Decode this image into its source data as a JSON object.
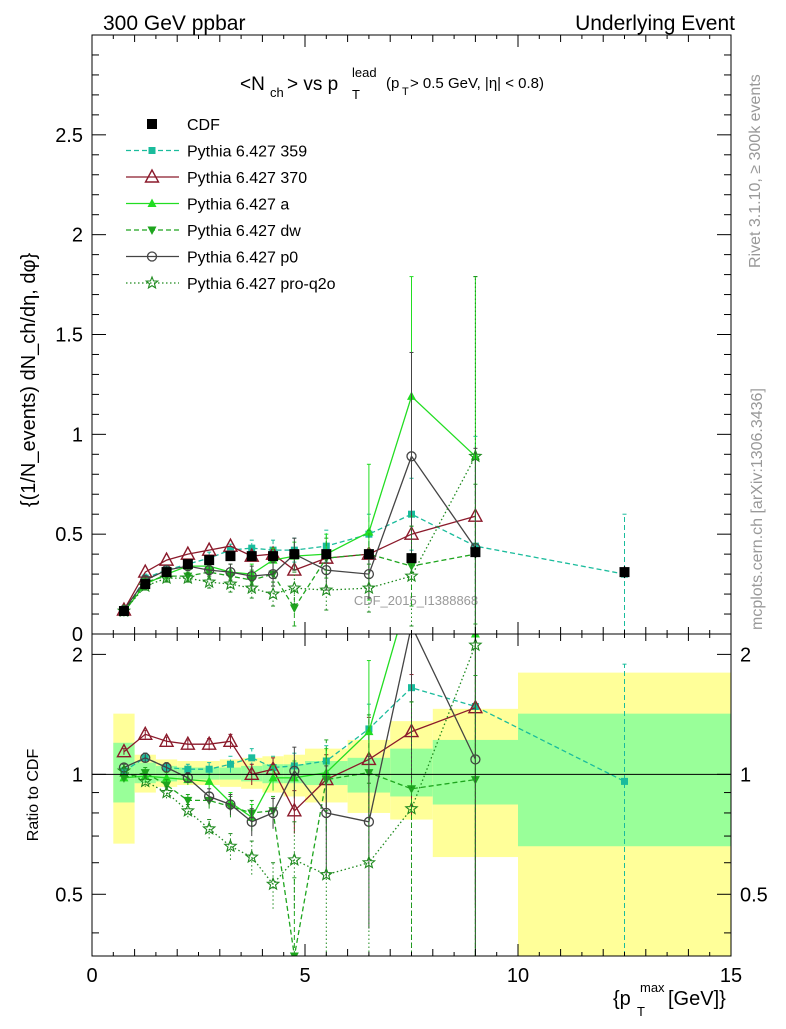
{
  "header": {
    "left": "300 GeV ppbar",
    "right": "Underlying Event"
  },
  "side": {
    "rivet": "Rivet 3.1.10, ≥ 300k events",
    "mcplots": "mcplots.cern.ch [arXiv:1306.3436]"
  },
  "watermark": "CDF_2015_I1388868",
  "colors": {
    "CDF": "#000000",
    "p359": "#1abc9c",
    "p370": "#8b1a2b",
    "pa": "#22dd22",
    "pdw": "#1ea51e",
    "pp0": "#444444",
    "pq2o": "#1e8a1e",
    "band_inner": "#99ff99",
    "band_outer": "#ffff99"
  },
  "chart_data": [
    {
      "type": "line",
      "panel": "main",
      "title": "<N_ch> vs p_T^lead (p_T > 0.5 GeV, |η| < 0.8)",
      "title_main": "<N",
      "title_sub1": "ch",
      "title_mid": "> vs p",
      "title_sup": "lead",
      "title_sub2": "T",
      "title_tail": "(p",
      "title_tail_sub": "T",
      "title_tail_end": " > 0.5 GeV, |η| < 0.8)",
      "ylabel": "{(1/N_events) dN_ch/dη, dφ}",
      "xlim": [
        0,
        15
      ],
      "ylim": [
        0,
        3
      ],
      "yticks": [
        "0.5",
        "1",
        "1.5",
        "2",
        "2.5"
      ],
      "ytick_values": [
        0.5,
        1,
        1.5,
        2,
        2.5
      ],
      "ytick_zero": "0",
      "legend": [
        "CDF",
        "Pythia 6.427 359",
        "Pythia 6.427 370",
        "Pythia 6.427 a",
        "Pythia 6.427 dw",
        "Pythia 6.427 p0",
        "Pythia 6.427 pro-q2o"
      ],
      "data": {
        "x": [
          0.75,
          1.25,
          1.75,
          2.25,
          2.75,
          3.25,
          3.75,
          4.25,
          4.75,
          5.5,
          6.5,
          7.5,
          9.0,
          12.5
        ],
        "CDF": [
          0.115,
          0.25,
          0.31,
          0.35,
          0.37,
          0.39,
          0.39,
          0.39,
          0.4,
          0.4,
          0.4,
          0.38,
          0.41,
          0.31
        ],
        "p359": [
          0.11,
          0.28,
          0.32,
          0.35,
          0.38,
          0.42,
          0.43,
          0.42,
          0.42,
          0.44,
          0.5,
          0.6,
          0.44,
          0.3
        ],
        "p370": [
          0.12,
          0.31,
          0.37,
          0.4,
          0.42,
          0.44,
          0.39,
          0.4,
          0.32,
          0.38,
          0.4,
          0.5,
          0.59
        ],
        "pa": [
          0.11,
          0.25,
          0.3,
          0.34,
          0.34,
          0.31,
          0.3,
          0.37,
          0.39,
          0.4,
          0.51,
          1.19,
          0.89
        ],
        "pdw": [
          0.11,
          0.26,
          0.29,
          0.29,
          0.31,
          0.29,
          0.27,
          0.3,
          0.13,
          0.38,
          0.4,
          0.34,
          0.4
        ],
        "pp0": [
          0.12,
          0.27,
          0.32,
          0.34,
          0.32,
          0.31,
          0.29,
          0.3,
          0.4,
          0.32,
          0.3,
          0.89,
          0.43
        ],
        "pq2o": [
          0.115,
          0.24,
          0.28,
          0.28,
          0.26,
          0.25,
          0.23,
          0.2,
          0.23,
          0.22,
          0.23,
          0.29,
          0.89
        ]
      },
      "errors": {
        "CDF": [
          0.01,
          0.01,
          0.01,
          0.01,
          0.01,
          0.01,
          0.01,
          0.01,
          0.015,
          0.015,
          0.02,
          0.02,
          0.03,
          0.03
        ],
        "p359": [
          0.01,
          0.02,
          0.02,
          0.02,
          0.03,
          0.03,
          0.04,
          0.05,
          0.06,
          0.08,
          0.1,
          0.18,
          0.55,
          0.3
        ],
        "pa": [
          0.01,
          0.02,
          0.02,
          0.02,
          0.03,
          0.04,
          0.05,
          0.06,
          0.07,
          0.1,
          0.34,
          0.6,
          0.9
        ],
        "pdw": [
          0.01,
          0.02,
          0.02,
          0.02,
          0.03,
          0.04,
          0.05,
          0.06,
          0.09,
          0.1,
          0.12,
          0.2,
          0.35
        ],
        "pp0": [
          0.01,
          0.02,
          0.02,
          0.02,
          0.03,
          0.04,
          0.05,
          0.06,
          0.08,
          0.1,
          0.12,
          0.52,
          0.5
        ],
        "pq2o": [
          0.01,
          0.02,
          0.02,
          0.02,
          0.03,
          0.04,
          0.05,
          0.06,
          0.08,
          0.1,
          0.12,
          0.25,
          0.9
        ]
      }
    },
    {
      "type": "line",
      "panel": "ratio",
      "ylabel": "Ratio to CDF",
      "xlabel": "{p_T^max [GeV]}",
      "xlabel_main": "{p",
      "xlabel_sup": "max",
      "xlabel_sub": "T",
      "xlabel_tail": " [GeV]}",
      "xlim": [
        0,
        15
      ],
      "ylim": [
        0.35,
        2.25
      ],
      "yticks": [
        "0.5",
        "1",
        "2"
      ],
      "ytick_values": [
        0.5,
        1,
        2
      ],
      "xticks": [
        "0",
        "5",
        "10",
        "15"
      ],
      "xtick_values": [
        0,
        5,
        10,
        15
      ],
      "bins": [
        [
          0.5,
          1.0
        ],
        [
          1.0,
          1.5
        ],
        [
          1.5,
          2.0
        ],
        [
          2.0,
          2.5
        ],
        [
          2.5,
          3.0
        ],
        [
          3.0,
          3.5
        ],
        [
          3.5,
          4.0
        ],
        [
          4.0,
          4.5
        ],
        [
          4.5,
          5.0
        ],
        [
          5.0,
          6.0
        ],
        [
          6.0,
          7.0
        ],
        [
          7.0,
          8.0
        ],
        [
          8.0,
          10.0
        ],
        [
          10.0,
          15.0
        ]
      ],
      "band_inner": [
        [
          0.85,
          1.2
        ],
        [
          0.95,
          1.07
        ],
        [
          0.96,
          1.05
        ],
        [
          0.97,
          1.04
        ],
        [
          0.97,
          1.04
        ],
        [
          0.97,
          1.04
        ],
        [
          0.96,
          1.05
        ],
        [
          0.95,
          1.06
        ],
        [
          0.95,
          1.06
        ],
        [
          0.94,
          1.08
        ],
        [
          0.9,
          1.1
        ],
        [
          0.88,
          1.16
        ],
        [
          0.84,
          1.22
        ],
        [
          0.66,
          1.42
        ]
      ],
      "band_outer": [
        [
          0.67,
          1.42
        ],
        [
          0.9,
          1.12
        ],
        [
          0.93,
          1.09
        ],
        [
          0.94,
          1.08
        ],
        [
          0.94,
          1.08
        ],
        [
          0.93,
          1.09
        ],
        [
          0.92,
          1.1
        ],
        [
          0.9,
          1.11
        ],
        [
          0.88,
          1.12
        ],
        [
          0.85,
          1.16
        ],
        [
          0.8,
          1.22
        ],
        [
          0.77,
          1.36
        ],
        [
          0.62,
          1.46
        ],
        [
          0.35,
          1.8
        ]
      ],
      "data": {
        "x": [
          0.75,
          1.25,
          1.75,
          2.25,
          2.75,
          3.25,
          3.75,
          4.25,
          4.75,
          5.5,
          6.5,
          7.5,
          9.0,
          12.5
        ],
        "p359": [
          1.02,
          1.1,
          1.04,
          1.03,
          1.03,
          1.06,
          1.1,
          1.04,
          1.05,
          1.08,
          1.3,
          1.65,
          1.48,
          0.96
        ],
        "p370": [
          1.14,
          1.26,
          1.21,
          1.19,
          1.19,
          1.21,
          1.0,
          1.03,
          0.81,
          0.97,
          1.09,
          1.28,
          1.47
        ],
        "pa": [
          0.98,
          0.99,
          0.98,
          0.97,
          0.96,
          0.85,
          0.78,
          0.98,
          0.98,
          1.01,
          1.28,
          3.0,
          2.25
        ],
        "pdw": [
          0.98,
          1.01,
          0.94,
          0.86,
          0.86,
          0.83,
          0.8,
          0.81,
          0.35,
          0.97,
          1.01,
          0.92,
          0.97
        ],
        "pp0": [
          1.04,
          1.1,
          1.04,
          0.98,
          0.88,
          0.84,
          0.76,
          0.8,
          1.02,
          0.8,
          0.76,
          2.36,
          1.09
        ],
        "pq2o": [
          1.02,
          0.96,
          0.9,
          0.81,
          0.73,
          0.66,
          0.62,
          0.53,
          0.61,
          0.56,
          0.6,
          0.82,
          2.11
        ]
      },
      "errors": {
        "p359": [
          0.02,
          0.03,
          0.03,
          0.03,
          0.04,
          0.05,
          0.06,
          0.07,
          0.08,
          0.1,
          0.2,
          0.6,
          1.0,
          0.93
        ],
        "p370": [
          0.02,
          0.03,
          0.03,
          0.03,
          0.04,
          0.05,
          0.06,
          0.07,
          0.1,
          0.15,
          0.3,
          0.5,
          1.0
        ],
        "pa": [
          0.02,
          0.03,
          0.03,
          0.03,
          0.04,
          0.05,
          0.06,
          0.07,
          0.1,
          0.15,
          0.65,
          1.6,
          2.0
        ],
        "pdw": [
          0.02,
          0.03,
          0.03,
          0.03,
          0.04,
          0.05,
          0.06,
          0.07,
          0.2,
          0.25,
          0.4,
          0.6,
          0.8
        ],
        "pp0": [
          0.02,
          0.03,
          0.03,
          0.03,
          0.04,
          0.05,
          0.06,
          0.07,
          0.15,
          0.25,
          0.35,
          1.4,
          1.2
        ],
        "pq2o": [
          0.02,
          0.03,
          0.03,
          0.03,
          0.04,
          0.05,
          0.06,
          0.07,
          0.15,
          0.25,
          0.35,
          0.7,
          2.0
        ]
      }
    }
  ]
}
